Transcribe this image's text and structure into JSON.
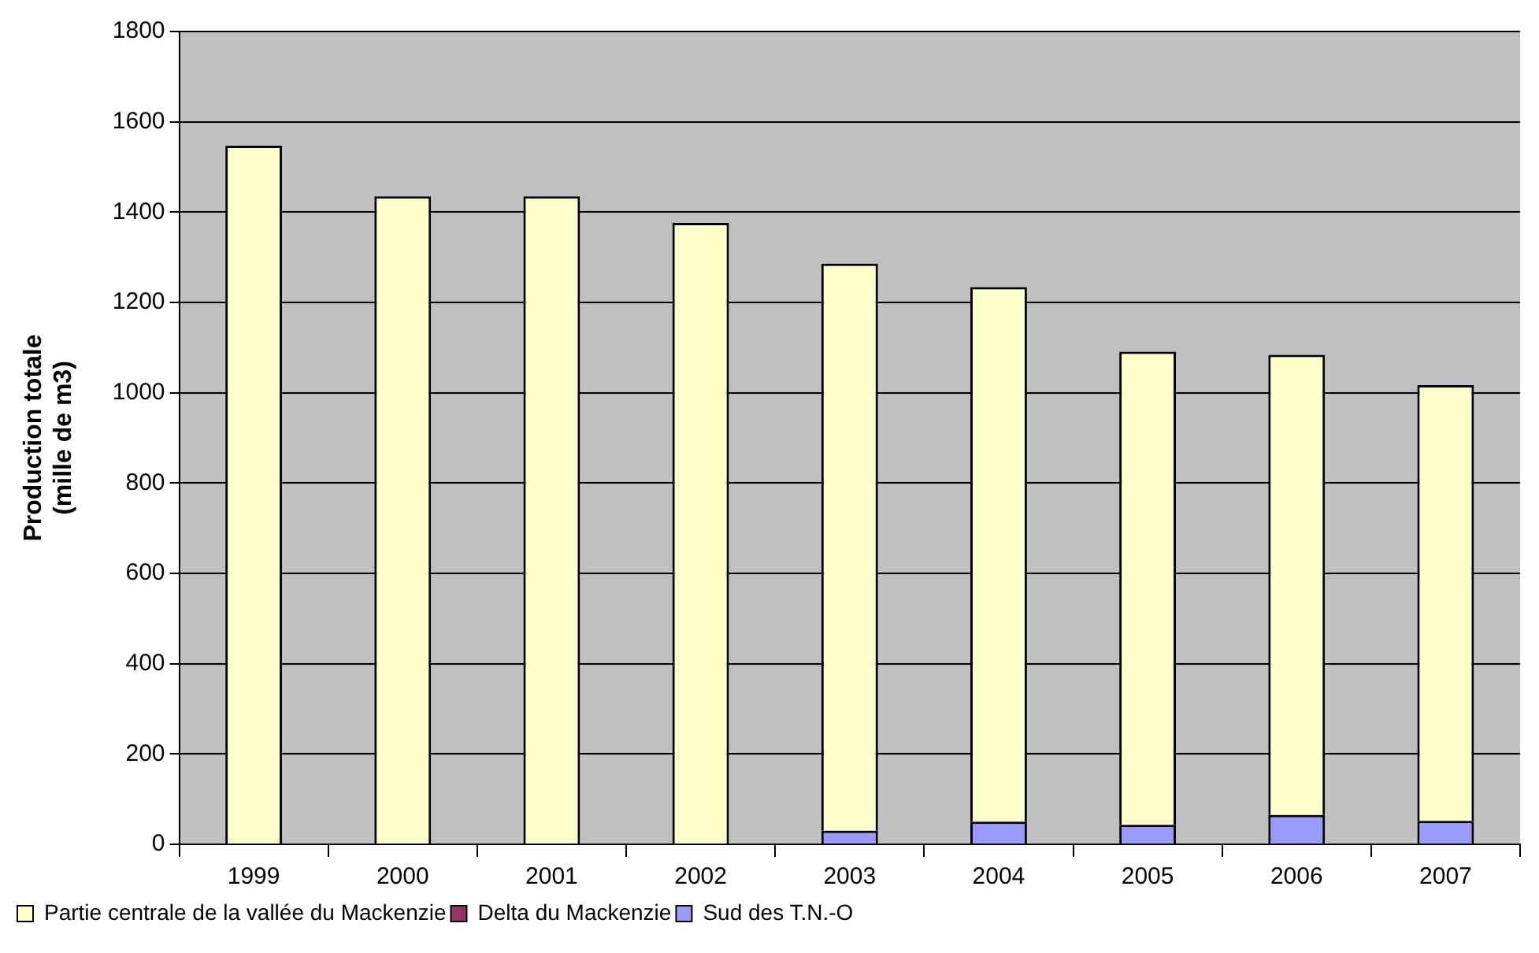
{
  "chart_data": {
    "type": "bar",
    "stacked": true,
    "ylabel": "Production totale\n(mille de m3)",
    "categories": [
      "1999",
      "2000",
      "2001",
      "2002",
      "2003",
      "2004",
      "2005",
      "2006",
      "2007"
    ],
    "series": [
      {
        "name": "Sud des T.N.-O",
        "color": "#9999ff",
        "values": [
          0,
          0,
          0,
          0,
          30,
          50,
          43,
          65,
          52
        ]
      },
      {
        "name": "Delta du Mackenzie",
        "color": "#993366",
        "values": [
          0,
          0,
          0,
          0,
          0,
          0,
          0,
          0,
          0
        ]
      },
      {
        "name": "Partie centrale de la vallée du Mackenzie",
        "color": "#ffffcc",
        "values": [
          1547,
          1435,
          1435,
          1376,
          1256,
          1184,
          1048,
          1019,
          965
        ]
      }
    ],
    "ylim": [
      0,
      1800
    ],
    "yticks": [
      0,
      200,
      400,
      600,
      800,
      1000,
      1200,
      1400,
      1600,
      1800
    ],
    "grid": "y",
    "legend": "bottom left"
  }
}
